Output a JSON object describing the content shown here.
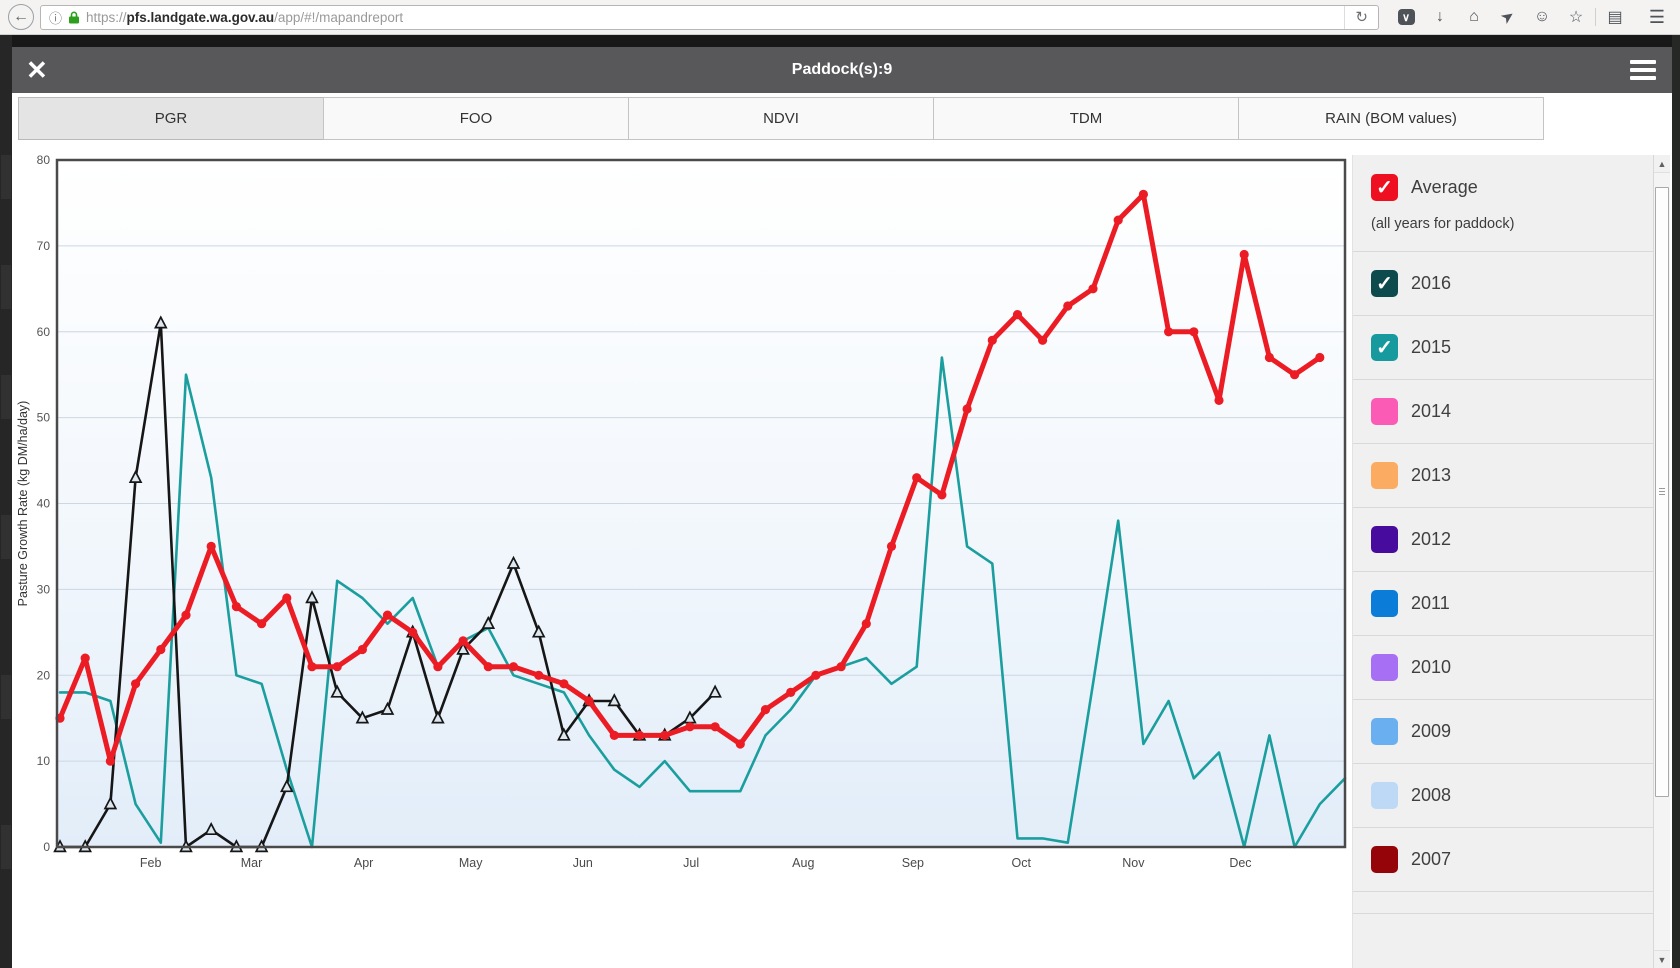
{
  "browser": {
    "url_prefix": "https://",
    "url_domain": "pfs.landgate.wa.gov.au",
    "url_path": "/app/#!/mapandreport",
    "back_glyph": "←",
    "info_glyph": "ⓘ",
    "lock_color": "#2ca01c",
    "reload_glyph": "↻",
    "toolbar_icons": [
      {
        "name": "pocket-icon",
        "glyph": "∨",
        "kind": "pocket"
      },
      {
        "name": "download-icon",
        "glyph": "↓",
        "kind": "plain"
      },
      {
        "name": "home-icon",
        "glyph": "⌂",
        "kind": "plain"
      },
      {
        "name": "send-icon",
        "glyph": "➤",
        "kind": "send"
      },
      {
        "name": "feedback-icon",
        "glyph": "☺",
        "kind": "plain"
      },
      {
        "name": "star-icon",
        "glyph": "☆",
        "kind": "plain"
      },
      {
        "name": "separator",
        "glyph": "",
        "kind": "sep"
      },
      {
        "name": "clipboard-icon",
        "glyph": "▤",
        "kind": "plain"
      },
      {
        "name": "menu-icon",
        "glyph": "☰",
        "kind": "menu"
      }
    ]
  },
  "modal": {
    "title": "Paddock(s):9",
    "close_glyph": "✕"
  },
  "tabs": [
    {
      "label": "PGR",
      "active": true
    },
    {
      "label": "FOO",
      "active": false
    },
    {
      "label": "NDVI",
      "active": false
    },
    {
      "label": "TDM",
      "active": false
    },
    {
      "label": "RAIN (BOM values)",
      "active": false
    }
  ],
  "legend": {
    "check_glyph": "✓",
    "items": [
      {
        "label": "Average",
        "sub": "(all years for paddock)",
        "color": "#ee1020",
        "checked": true
      },
      {
        "label": "2016",
        "color": "#0d4a4d",
        "checked": true
      },
      {
        "label": "2015",
        "color": "#169a9e",
        "checked": true
      },
      {
        "label": "2014",
        "color": "#fb5bb5",
        "checked": false
      },
      {
        "label": "2013",
        "color": "#fbab62",
        "checked": false
      },
      {
        "label": "2012",
        "color": "#470c9e",
        "checked": false
      },
      {
        "label": "2011",
        "color": "#0c7cd9",
        "checked": false
      },
      {
        "label": "2010",
        "color": "#a770f4",
        "checked": false
      },
      {
        "label": "2009",
        "color": "#6ab0f0",
        "checked": false
      },
      {
        "label": "2008",
        "color": "#bed9f6",
        "checked": false
      },
      {
        "label": "2007",
        "color": "#950409",
        "checked": false
      }
    ]
  },
  "chart_data": {
    "type": "line",
    "title": "",
    "xlabel": "",
    "ylabel": "Pasture Growth Rate (kg DM/ha/day)",
    "ylim": [
      0,
      80
    ],
    "y_ticks": [
      0,
      10,
      20,
      30,
      40,
      50,
      60,
      70,
      80
    ],
    "grid": true,
    "legend_position": "right-panel",
    "x_unit": "week-of-year",
    "weeks_total": 51,
    "x_months": [
      {
        "label": "Feb",
        "week": 3.6
      },
      {
        "label": "Mar",
        "week": 7.6
      },
      {
        "label": "Apr",
        "week": 12.05
      },
      {
        "label": "May",
        "week": 16.3
      },
      {
        "label": "Jun",
        "week": 20.75
      },
      {
        "label": "Jul",
        "week": 25.05
      },
      {
        "label": "Aug",
        "week": 29.5
      },
      {
        "label": "Sep",
        "week": 33.85
      },
      {
        "label": "Oct",
        "week": 38.15
      },
      {
        "label": "Nov",
        "week": 42.6
      },
      {
        "label": "Dec",
        "week": 46.85
      }
    ],
    "series": [
      {
        "name": "2015",
        "color": "#1b9e9e",
        "line_width": 2.6,
        "marker": "none",
        "start_week": 0,
        "values": [
          18,
          18,
          17,
          5,
          0.5,
          55,
          43,
          20,
          19,
          9,
          0,
          31,
          29,
          26,
          29,
          21,
          24,
          25.5,
          20,
          19,
          18,
          13,
          9,
          7,
          10,
          6.5,
          6.5,
          6.5,
          13,
          16,
          20,
          21,
          22,
          19,
          21,
          57,
          35,
          33,
          1,
          1,
          0.5,
          19,
          38,
          12,
          17,
          8,
          11,
          0,
          13,
          0,
          5,
          8
        ]
      },
      {
        "name": "2016",
        "color": "#161616",
        "line_width": 2.6,
        "marker": "triangle",
        "start_week": 0,
        "values": [
          0,
          0,
          5,
          43,
          61,
          0,
          2,
          0,
          0,
          7,
          29,
          18,
          15,
          16,
          25,
          15,
          23,
          26,
          33,
          25,
          13,
          17,
          17,
          13,
          13,
          15,
          18
        ]
      },
      {
        "name": "Average (all years for paddock)",
        "color": "#ec1c24",
        "line_width": 5,
        "marker": "dot",
        "start_week": 0,
        "values": [
          15,
          22,
          10,
          19,
          23,
          27,
          35,
          28,
          26,
          29,
          21,
          21,
          23,
          27,
          25,
          21,
          24,
          21,
          21,
          20,
          19,
          17,
          13,
          13,
          13,
          14,
          14,
          12,
          16,
          18,
          20,
          21,
          26,
          35,
          43,
          41,
          51,
          59,
          62,
          59,
          63,
          65,
          73,
          76,
          60,
          60,
          52,
          69,
          57,
          55,
          57
        ]
      }
    ]
  }
}
